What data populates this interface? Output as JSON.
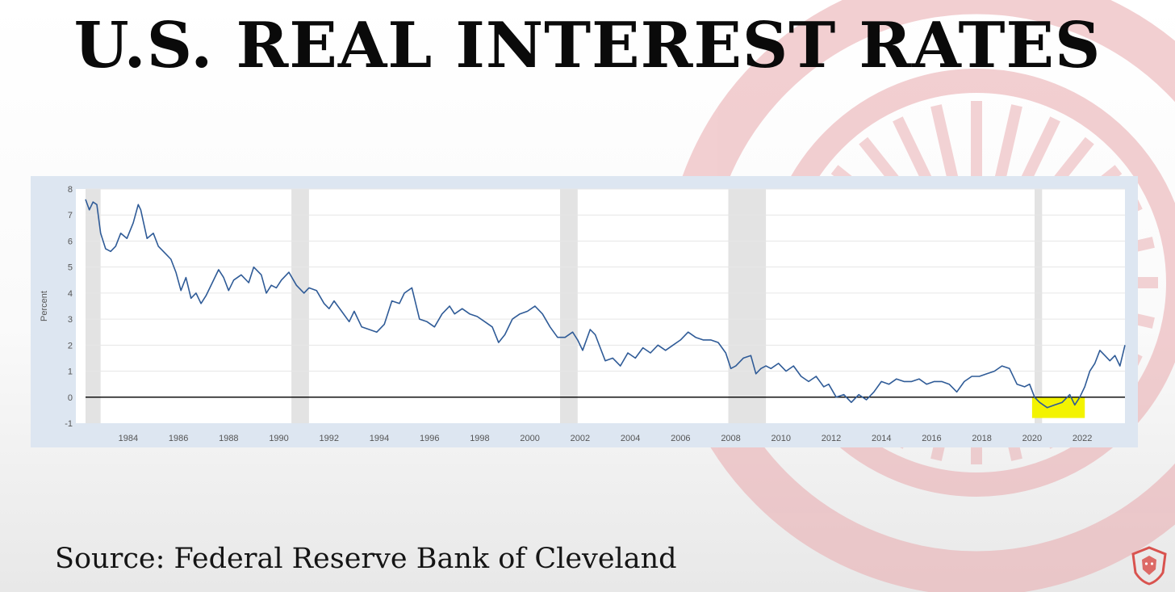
{
  "title": "U.S. REAL INTEREST RATES",
  "source": "Source: Federal Reserve Bank of Cleveland",
  "colors": {
    "line": "#2f5b97",
    "recession": "#e3e3e3",
    "highlight": "#f3f300",
    "emblem": "#e9a9ad",
    "logo": "#d9534f"
  },
  "icons": {
    "logo": "lion-shield-logo-icon",
    "background": "sunburst-emblem"
  },
  "chart_data": {
    "type": "line",
    "ylabel": "Percent",
    "xlabel": "",
    "xlim": [
      1982.3,
      2023.7
    ],
    "ylim": [
      -1,
      8
    ],
    "yticks": [
      "8",
      "7",
      "6",
      "5",
      "4",
      "3",
      "2",
      "1",
      "0",
      "-1"
    ],
    "xticks": [
      "1984",
      "1986",
      "1988",
      "1990",
      "1992",
      "1994",
      "1996",
      "1998",
      "2000",
      "2002",
      "2004",
      "2006",
      "2008",
      "2010",
      "2012",
      "2014",
      "2016",
      "2018",
      "2020",
      "2022"
    ],
    "grid": true,
    "zero_line": true,
    "recessions": [
      [
        1982.3,
        1982.9
      ],
      [
        1990.5,
        1991.2
      ],
      [
        2001.2,
        2001.9
      ],
      [
        2007.9,
        2009.4
      ],
      [
        2020.1,
        2020.4
      ]
    ],
    "highlight": {
      "x": [
        2020.0,
        2022.1
      ],
      "y": [
        -0.8,
        0.0
      ]
    },
    "series": [
      {
        "x": [
          1982.3,
          1982.45,
          1982.6,
          1982.75,
          1982.9,
          1983.1,
          1983.3,
          1983.5,
          1983.7,
          1983.95,
          1984.2,
          1984.4,
          1984.5,
          1984.75,
          1985.0,
          1985.2,
          1985.5,
          1985.7,
          1985.9,
          1986.1,
          1986.3,
          1986.5,
          1986.7,
          1986.9,
          1987.1,
          1987.35,
          1987.6,
          1987.8,
          1988.0,
          1988.2,
          1988.5,
          1988.8,
          1989.0,
          1989.3,
          1989.5,
          1989.7,
          1989.9,
          1990.1,
          1990.4,
          1990.7,
          1991.0,
          1991.2,
          1991.5,
          1991.8,
          1992.0,
          1992.2,
          1992.5,
          1992.8,
          1993.0,
          1993.3,
          1993.6,
          1993.9,
          1994.2,
          1994.5,
          1994.8,
          1995.0,
          1995.3,
          1995.6,
          1995.9,
          1996.2,
          1996.5,
          1996.8,
          1997.0,
          1997.3,
          1997.6,
          1997.9,
          1998.2,
          1998.5,
          1998.75,
          1999.0,
          1999.3,
          1999.6,
          1999.9,
          2000.2,
          2000.5,
          2000.8,
          2001.1,
          2001.4,
          2001.7,
          2001.9,
          2002.1,
          2002.4,
          2002.6,
          2002.8,
          2003.0,
          2003.3,
          2003.6,
          2003.9,
          2004.2,
          2004.5,
          2004.8,
          2005.1,
          2005.4,
          2005.7,
          2006.0,
          2006.3,
          2006.6,
          2006.9,
          2007.2,
          2007.5,
          2007.8,
          2008.0,
          2008.2,
          2008.5,
          2008.8,
          2009.0,
          2009.2,
          2009.4,
          2009.6,
          2009.9,
          2010.2,
          2010.5,
          2010.8,
          2011.1,
          2011.4,
          2011.7,
          2011.9,
          2012.2,
          2012.5,
          2012.8,
          2013.1,
          2013.4,
          2013.7,
          2014.0,
          2014.3,
          2014.6,
          2014.9,
          2015.2,
          2015.5,
          2015.8,
          2016.1,
          2016.4,
          2016.7,
          2017.0,
          2017.3,
          2017.6,
          2017.9,
          2018.2,
          2018.5,
          2018.8,
          2019.1,
          2019.4,
          2019.7,
          2019.9,
          2020.1,
          2020.3,
          2020.6,
          2020.9,
          2021.2,
          2021.5,
          2021.7,
          2021.9,
          2022.1,
          2022.3,
          2022.5,
          2022.7,
          2022.9,
          2023.1,
          2023.3,
          2023.5,
          2023.7
        ],
        "y": [
          7.6,
          7.2,
          7.5,
          7.4,
          6.3,
          5.7,
          5.6,
          5.8,
          6.3,
          6.1,
          6.7,
          7.4,
          7.2,
          6.1,
          6.3,
          5.8,
          5.5,
          5.3,
          4.8,
          4.1,
          4.6,
          3.8,
          4.0,
          3.6,
          3.9,
          4.4,
          4.9,
          4.6,
          4.1,
          4.5,
          4.7,
          4.4,
          5.0,
          4.7,
          4.0,
          4.3,
          4.2,
          4.5,
          4.8,
          4.3,
          4.0,
          4.2,
          4.1,
          3.6,
          3.4,
          3.7,
          3.3,
          2.9,
          3.3,
          2.7,
          2.6,
          2.5,
          2.8,
          3.7,
          3.6,
          4.0,
          4.2,
          3.0,
          2.9,
          2.7,
          3.2,
          3.5,
          3.2,
          3.4,
          3.2,
          3.1,
          2.9,
          2.7,
          2.1,
          2.4,
          3.0,
          3.2,
          3.3,
          3.5,
          3.2,
          2.7,
          2.3,
          2.3,
          2.5,
          2.2,
          1.8,
          2.6,
          2.4,
          1.9,
          1.4,
          1.5,
          1.2,
          1.7,
          1.5,
          1.9,
          1.7,
          2.0,
          1.8,
          2.0,
          2.2,
          2.5,
          2.3,
          2.2,
          2.2,
          2.1,
          1.7,
          1.1,
          1.2,
          1.5,
          1.6,
          0.9,
          1.1,
          1.2,
          1.1,
          1.3,
          1.0,
          1.2,
          0.8,
          0.6,
          0.8,
          0.4,
          0.5,
          0.0,
          0.1,
          -0.2,
          0.1,
          -0.1,
          0.2,
          0.6,
          0.5,
          0.7,
          0.6,
          0.6,
          0.7,
          0.5,
          0.6,
          0.6,
          0.5,
          0.2,
          0.6,
          0.8,
          0.8,
          0.9,
          1.0,
          1.2,
          1.1,
          0.5,
          0.4,
          0.5,
          0.0,
          -0.2,
          -0.4,
          -0.3,
          -0.2,
          0.1,
          -0.3,
          0.0,
          0.4,
          1.0,
          1.3,
          1.8,
          1.6,
          1.4,
          1.6,
          1.2,
          2.0
        ]
      }
    ]
  }
}
